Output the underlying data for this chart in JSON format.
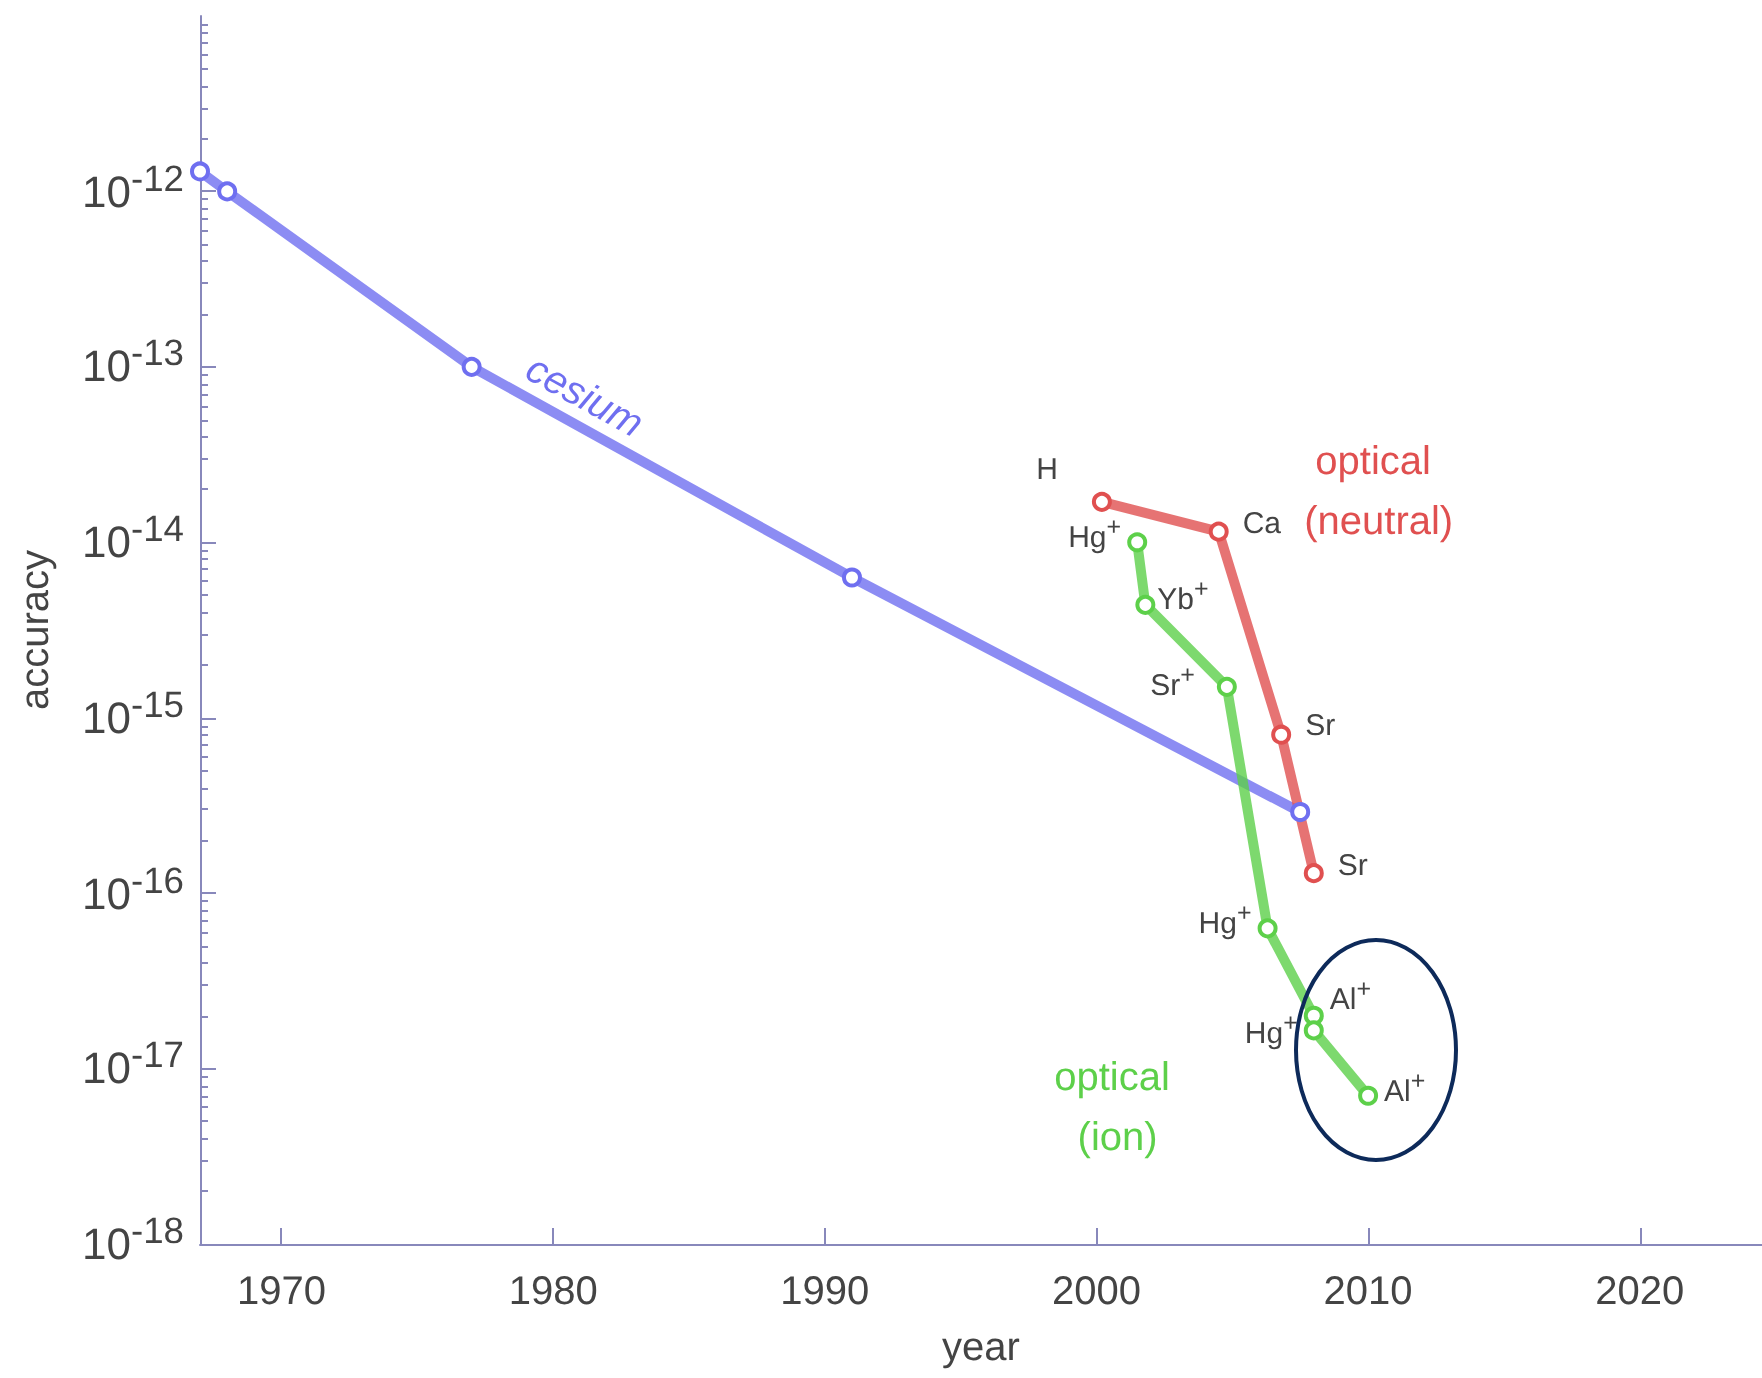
{
  "chart_data": {
    "type": "line",
    "xlabel": "year",
    "ylabel": "accuracy",
    "log": "y",
    "grid": false,
    "legend": false,
    "marker": "circle",
    "xlim": [
      1967,
      2024.5
    ],
    "xticks": [
      1970,
      1980,
      1990,
      2000,
      2010,
      2020
    ],
    "ylim": [
      1e-18,
      1e-11
    ],
    "yticks": [
      {
        "value": 1e-18,
        "label": "10$^{-18}$"
      },
      {
        "value": 1e-17,
        "label": "10$^{-17}$"
      },
      {
        "value": 1e-16,
        "label": "10$^{-16}$"
      },
      {
        "value": 1e-15,
        "label": "10$^{-15}$"
      },
      {
        "value": 1e-14,
        "label": "10$^{-14}$"
      },
      {
        "value": 1e-13,
        "label": "10$^{-13}$"
      },
      {
        "value": 1e-12,
        "label": "10$^{-12}$"
      }
    ],
    "series": [
      {
        "name": "cesium",
        "color": "#6f6ff0",
        "x": [
          1967,
          1968,
          1977,
          1991,
          2007.5
        ],
        "values": [
          1.3e-12,
          1e-12,
          1e-13,
          6.3e-15,
          2.9e-16
        ]
      },
      {
        "name": "optical (neutral)",
        "color": "#e05050",
        "x": [
          2000.2,
          2004.5,
          2006.8,
          2008
        ],
        "values": [
          1.7e-14,
          1.15e-14,
          8e-16,
          1.3e-16
        ]
      },
      {
        "name": "optical (ion)",
        "color": "#5dd04a",
        "x": [
          2001.5,
          2001.8,
          2004.8,
          2006.3,
          2008,
          2008,
          2010
        ],
        "values": [
          1e-14,
          4.4e-15,
          1.5e-15,
          6.3e-17,
          2e-17,
          1.65e-17,
          7e-18
        ]
      }
    ],
    "annotations": [
      {
        "text": "H",
        "x": 2000.2,
        "y": 1.7e-14
      },
      {
        "text": "Ca",
        "x": 2004.5,
        "y": 1.15e-14
      },
      {
        "text": "Sr",
        "x": 2006.8,
        "y": 8e-16
      },
      {
        "text": "Sr",
        "x": 2008,
        "y": 1.3e-16
      },
      {
        "text": "Hg$^{+}$",
        "x": 2001.5,
        "y": 1e-14
      },
      {
        "text": "Yb$^{+}$",
        "x": 2001.8,
        "y": 4.4e-15
      },
      {
        "text": "Sr$^{+}$",
        "x": 2004.8,
        "y": 1.5e-15
      },
      {
        "text": "Hg$^{+}$",
        "x": 2006.3,
        "y": 6.3e-17
      },
      {
        "text": "Al$^{+}$",
        "x": 2008,
        "y": 2e-17
      },
      {
        "text": "Hg$^{+}$",
        "x": 2008,
        "y": 1.65e-17
      },
      {
        "text": "Al$^{+}$",
        "x": 2010,
        "y": 7e-18
      }
    ]
  }
}
